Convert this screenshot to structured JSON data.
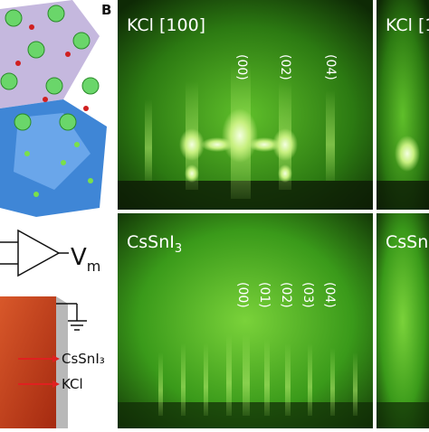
{
  "figure": {
    "panel_letter": "B",
    "top_left": {
      "title": "KCl [100]",
      "indices": [
        "(00)",
        "(02)",
        "(04)"
      ]
    },
    "top_right": {
      "title": "KCl [1"
    },
    "bottom_left": {
      "title_main": "CsSnI",
      "title_sub": "3",
      "indices": [
        "(00)",
        "(01)",
        "(02)",
        "(03)",
        "(04)"
      ]
    },
    "bottom_right": {
      "title": "CsSn"
    },
    "circuit": {
      "symbol_main": "V",
      "symbol_sub": "m"
    },
    "sample": {
      "layers": [
        "CsSnI₃",
        "KCl"
      ]
    }
  }
}
